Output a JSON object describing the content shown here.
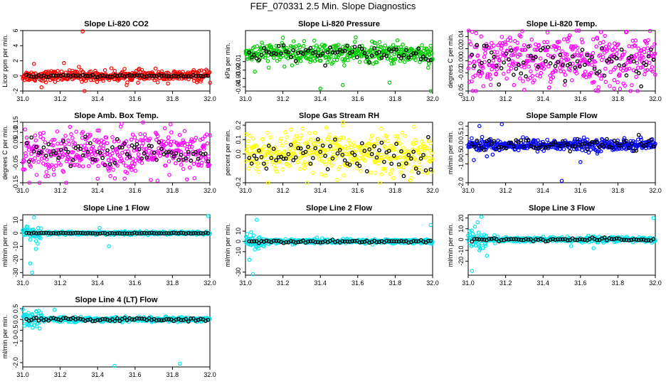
{
  "page": {
    "title": "FEF_070331  2.5 Min. Slope Diagnostics"
  },
  "colors": {
    "series_black": "#000000",
    "co2": "#ff0000",
    "pressure": "#00cc00",
    "temp": "#ff00ff",
    "rh": "#ffff00",
    "sample_flow": "#0000ff",
    "line_flow": "#00e5ee"
  },
  "chart_data": [
    {
      "id": "co2",
      "type": "scatter",
      "title": "Slope Li-820 CO2",
      "ylabel": "Licor ppm per min.",
      "xlim": [
        31.0,
        32.0
      ],
      "ylim": [
        -2,
        6
      ],
      "xticks": [
        "31.0",
        "31.2",
        "31.4",
        "31.6",
        "31.8",
        "32.0"
      ],
      "yticks": [
        "-2",
        "0",
        "2",
        "4",
        "6"
      ],
      "color_key": "co2",
      "noise": {
        "colored": 0.35,
        "black": 0.08,
        "outliers": [
          [
            31.32,
            5.9
          ],
          [
            31.33,
            -2.1
          ],
          [
            31.06,
            1.6
          ],
          [
            31.1,
            -1.5
          ],
          [
            31.22,
            1.7
          ],
          [
            31.3,
            1.2
          ]
        ]
      }
    },
    {
      "id": "pressure",
      "type": "scatter",
      "title": "Slope Li-820 Pressure",
      "ylabel": "kPa per min.",
      "xlim": [
        31.0,
        32.0
      ],
      "ylim": [
        -0.045,
        0.027
      ],
      "xticks": [
        "31.0",
        "31.2",
        "31.4",
        "31.6",
        "31.8",
        "32.0"
      ],
      "yticks": [
        "-0.04",
        "-0.03",
        "-0.02",
        "-0.01"
      ],
      "color_key": "pressure",
      "noise": {
        "colored": 0.006,
        "black": 0.005,
        "outliers": [
          [
            31.4,
            -0.042
          ],
          [
            31.99,
            -0.045
          ],
          [
            31.52,
            -0.038
          ],
          [
            31.77,
            -0.035
          ],
          [
            31.05,
            -0.022
          ]
        ]
      }
    },
    {
      "id": "licor_temp",
      "type": "scatter",
      "title": "Slope Li-820 Temp.",
      "ylabel": "degrees C per min.",
      "xlim": [
        31.0,
        32.0
      ],
      "ylim": [
        -0.05,
        0.05
      ],
      "xticks": [
        "31.0",
        "31.2",
        "31.4",
        "31.6",
        "31.8",
        "32.0"
      ],
      "yticks": [
        "-0.05",
        "-0.02",
        "0.00",
        "0.02",
        "0.04"
      ],
      "color_key": "temp",
      "noise": {
        "colored": 0.022,
        "black": 0.015,
        "outliers": [
          [
            31.3,
            -0.048
          ],
          [
            31.78,
            -0.046
          ],
          [
            31.12,
            -0.04
          ]
        ]
      }
    },
    {
      "id": "amb_temp",
      "type": "scatter",
      "title": "Slope Amb. Box Temp.",
      "ylabel": "degrees C per min.",
      "xlim": [
        31.0,
        32.0
      ],
      "ylim": [
        -0.15,
        0.15
      ],
      "xticks": [
        "31.0",
        "31.2",
        "31.4",
        "31.6",
        "31.8",
        "32.0"
      ],
      "yticks": [
        "-0.15",
        "-0.05",
        "0.05",
        "0.10",
        "0.15"
      ],
      "color_key": "temp",
      "noise": {
        "colored": 0.055,
        "black": 0.03,
        "outliers": [
          [
            31.79,
            0.14
          ],
          [
            31.72,
            -0.14
          ],
          [
            31.4,
            -0.13
          ]
        ]
      }
    },
    {
      "id": "rh",
      "type": "scatter",
      "title": "Slope Gas Stream RH",
      "ylabel": "percent per min.",
      "xlim": [
        31.0,
        32.0
      ],
      "ylim": [
        -0.2,
        0.22
      ],
      "xticks": [
        "31.0",
        "31.2",
        "31.4",
        "31.6",
        "31.8",
        "32.0"
      ],
      "yticks": [
        "-0.2",
        "0.0",
        "0.1",
        "0.2"
      ],
      "color_key": "rh",
      "noise": {
        "colored": 0.07,
        "black": 0.06,
        "outliers": [
          [
            31.12,
            -0.2
          ],
          [
            31.52,
            0.2
          ],
          [
            31.49,
            -0.18
          ],
          [
            31.9,
            0.19
          ]
        ]
      }
    },
    {
      "id": "sample_flow",
      "type": "scatter",
      "title": "Slope Sample Flow",
      "ylabel": "ml/min per min.",
      "xlim": [
        31.0,
        32.0
      ],
      "ylim": [
        -2.0,
        1.2
      ],
      "xticks": [
        "31.0",
        "31.2",
        "31.4",
        "31.6",
        "31.8",
        "32.0"
      ],
      "yticks": [
        "-2.0",
        "-1.0",
        "-0.5",
        "0.0",
        "0.5",
        "1.0"
      ],
      "color_key": "sample_flow",
      "noise": {
        "colored": 0.15,
        "black": 0.15,
        "outliers": [
          [
            31.06,
            1.0
          ],
          [
            31.18,
            1.1
          ],
          [
            31.5,
            -1.9
          ],
          [
            31.03,
            -0.8
          ],
          [
            31.6,
            -0.9
          ],
          [
            31.1,
            -0.6
          ]
        ]
      }
    },
    {
      "id": "line1",
      "type": "scatter",
      "title": "Slope Line 1 Flow",
      "ylabel": "ml/min per min.",
      "xlim": [
        31.0,
        32.0
      ],
      "ylim": [
        -32,
        14
      ],
      "xticks": [
        "31.0",
        "31.2",
        "31.4",
        "31.6",
        "31.8",
        "32.0"
      ],
      "yticks": [
        "-30",
        "-20",
        "-10",
        "0",
        "10"
      ],
      "color_key": "line_flow",
      "noise": {
        "colored": 0.6,
        "black": 0.2,
        "outliers": [
          [
            31.05,
            -30
          ],
          [
            31.04,
            -23
          ],
          [
            31.07,
            -12
          ],
          [
            31.06,
            12
          ],
          [
            31.99,
            13
          ],
          [
            31.02,
            5
          ],
          [
            31.04,
            -5
          ],
          [
            31.08,
            -8
          ],
          [
            31.46,
            -10
          ],
          [
            31.41,
            4
          ]
        ]
      }
    },
    {
      "id": "line2",
      "type": "scatter",
      "title": "Slope Line 2 Flow",
      "ylabel": "ml/min per min.",
      "xlim": [
        31.0,
        32.0
      ],
      "ylim": [
        -33,
        26
      ],
      "xticks": [
        "31.0",
        "31.2",
        "31.4",
        "31.6",
        "31.8",
        "32.0"
      ],
      "yticks": [
        "-30",
        "-10",
        "0",
        "10"
      ],
      "color_key": "line_flow",
      "noise": {
        "colored": 1.0,
        "black": 0.6,
        "outliers": [
          [
            31.04,
            -32
          ],
          [
            31.02,
            -18
          ],
          [
            31.06,
            21
          ],
          [
            31.99,
            16
          ],
          [
            31.03,
            9
          ],
          [
            31.05,
            -8
          ],
          [
            31.41,
            3
          ]
        ]
      }
    },
    {
      "id": "line3",
      "type": "scatter",
      "title": "Slope Line 3 Flow",
      "ylabel": "ml/min per min.",
      "xlim": [
        31.0,
        32.0
      ],
      "ylim": [
        -33,
        23
      ],
      "xticks": [
        "31.0",
        "31.2",
        "31.4",
        "31.6",
        "31.8",
        "32.0"
      ],
      "yticks": [
        "-20",
        "-10",
        "0",
        "10",
        "20"
      ],
      "color_key": "line_flow",
      "noise": {
        "colored": 1.2,
        "black": 0.7,
        "outliers": [
          [
            31.07,
            21
          ],
          [
            31.05,
            16
          ],
          [
            31.99,
            20
          ],
          [
            31.02,
            -29
          ],
          [
            31.06,
            -10
          ],
          [
            31.1,
            -15
          ],
          [
            31.67,
            -8
          ],
          [
            31.55,
            -6
          ]
        ]
      }
    },
    {
      "id": "line4",
      "type": "scatter",
      "title": "Slope Line 4 (LT) Flow",
      "ylabel": "ml/min per min.",
      "xlim": [
        31.0,
        32.0
      ],
      "ylim": [
        -2.2,
        0.6
      ],
      "xticks": [
        "31.0",
        "31.2",
        "31.4",
        "31.6",
        "31.8",
        "32.0"
      ],
      "yticks": [
        "-2.0",
        "-1.0",
        "-0.5",
        "0.0",
        "0.5"
      ],
      "color_key": "line_flow",
      "noise": {
        "colored": 0.05,
        "black": 0.04,
        "outliers": [
          [
            31.49,
            -2.15
          ],
          [
            31.84,
            -2.05
          ],
          [
            31.17,
            0.45
          ],
          [
            31.03,
            0.3
          ],
          [
            31.05,
            0.2
          ]
        ]
      }
    }
  ]
}
